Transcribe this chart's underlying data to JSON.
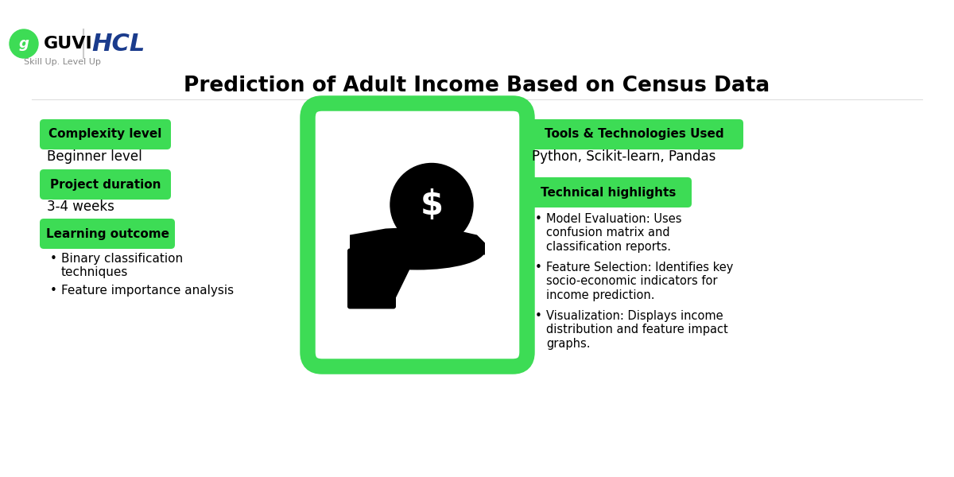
{
  "title": "Prediction of Adult Income Based on Census Data",
  "title_fontsize": 19,
  "background_color": "#ffffff",
  "green_color": "#3DDC55",
  "left_badges": [
    {
      "label": "Complexity level",
      "value": "Beginner level"
    },
    {
      "label": "Project duration",
      "value": "3-4 weeks"
    },
    {
      "label": "Learning outcome",
      "value": ""
    }
  ],
  "learning_outcome_bullets": [
    "Binary classification\ntechniques",
    "Feature importance analysis"
  ],
  "right_badges": [
    {
      "label": "Tools & Technologies Used",
      "value": "Python, Scikit-learn, Pandas"
    },
    {
      "label": "Technical highlights",
      "value": ""
    }
  ],
  "technical_bullets": [
    "Model Evaluation: Uses\nconfusion matrix and\nclassification reports.",
    "Feature Selection: Identifies key\nsocio-economic indicators for\nincome prediction.",
    "Visualization: Displays income\ndistribution and feature impact\ngraphs."
  ],
  "guvi_green": "#3DDC55",
  "hcl_blue": "#1A3B8C",
  "subtitle": "Skill Up. Level Up"
}
